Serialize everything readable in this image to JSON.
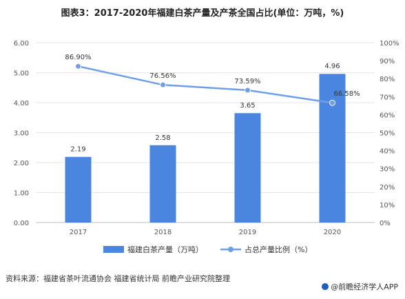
{
  "header": {
    "title": "图表3：2017-2020年福建白茶产量及产茶全国占比(单位：万吨，%)"
  },
  "chart_data": {
    "type": "bar",
    "categories": [
      "2017",
      "2018",
      "2019",
      "2020"
    ],
    "series": [
      {
        "name": "福建白茶产量（万吨）",
        "type": "bar",
        "axis": "left",
        "values": [
          2.19,
          2.58,
          3.65,
          4.96
        ],
        "labels": [
          "2.19",
          "2.58",
          "3.65",
          "4.96"
        ],
        "color": "#4a86e0"
      },
      {
        "name": "占总产量比例（%）",
        "type": "line",
        "axis": "right",
        "values": [
          86.9,
          76.56,
          73.59,
          66.58
        ],
        "labels": [
          "86.90%",
          "76.56%",
          "73.59%",
          "66.58%"
        ],
        "color": "#6d9eea"
      }
    ],
    "y_left": {
      "range": [
        0,
        6
      ],
      "ticks": [
        "0.00",
        "1.00",
        "2.00",
        "3.00",
        "4.00",
        "5.00",
        "6.00"
      ]
    },
    "y_right": {
      "range": [
        0,
        100
      ],
      "ticks": [
        "0%",
        "10%",
        "20%",
        "30%",
        "40%",
        "50%",
        "60%",
        "70%",
        "80%",
        "90%",
        "100%"
      ]
    },
    "grid": true,
    "legend": "bottom"
  },
  "footer": {
    "source": "资料来源：福建省茶叶流通协会 福建省统计局 前瞻产业研究院整理",
    "brand": "@前瞻经济学人APP"
  }
}
